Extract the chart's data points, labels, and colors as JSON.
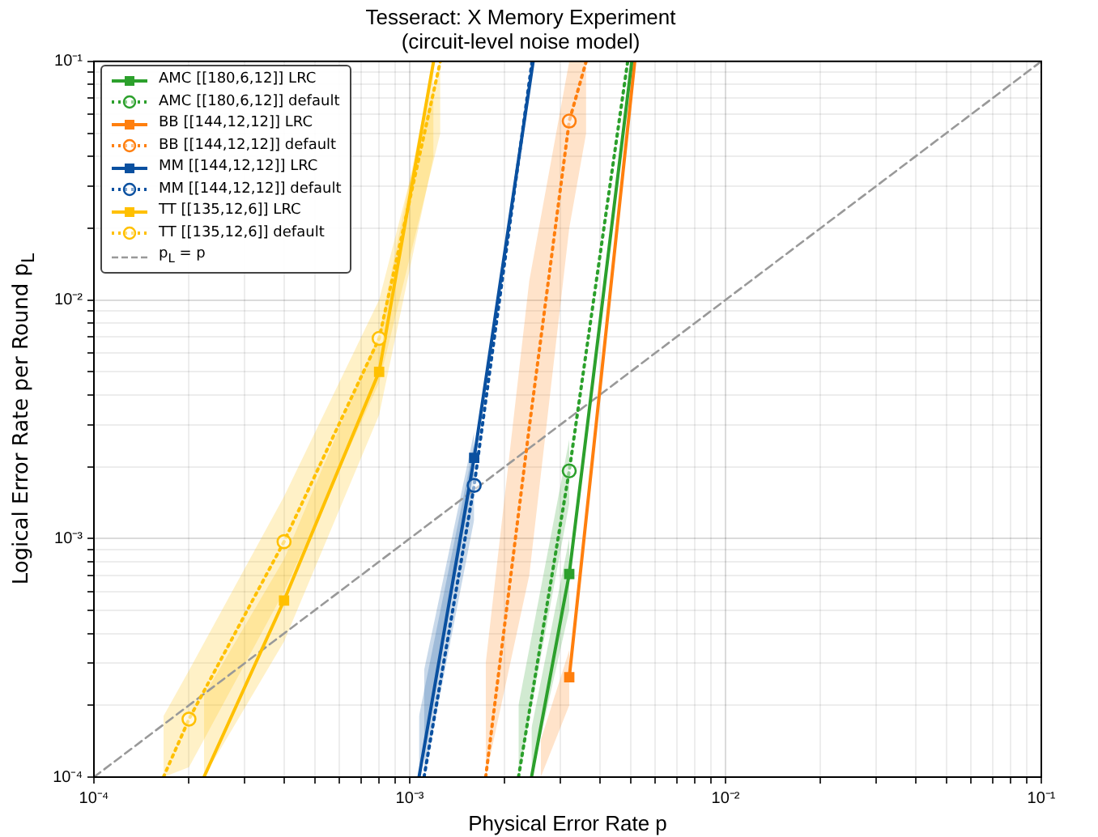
{
  "chart_data": {
    "type": "line",
    "title": "Tesseract: X Memory Experiment\n(circuit-level noise model)",
    "xlabel": "Physical Error Rate p",
    "ylabel": "Logical Error Rate per Round p$_{L}$",
    "log": "xy",
    "grid": true,
    "legend": "top left",
    "xlim": [
      0.0001,
      0.1
    ],
    "ylim": [
      0.0001,
      0.1
    ],
    "xticks": [
      {
        "value": 0.0001,
        "label": "10⁻⁴"
      },
      {
        "value": 0.0002,
        "label": null
      },
      {
        "value": 0.0003,
        "label": null
      },
      {
        "value": 0.0004,
        "label": null
      },
      {
        "value": 0.0005,
        "label": null
      },
      {
        "value": 0.0006,
        "label": null
      },
      {
        "value": 0.0007,
        "label": null
      },
      {
        "value": 0.0008,
        "label": null
      },
      {
        "value": 0.0009,
        "label": null
      },
      {
        "value": 0.001,
        "label": "10⁻³"
      },
      {
        "value": 0.002,
        "label": null
      },
      {
        "value": 0.003,
        "label": null
      },
      {
        "value": 0.004,
        "label": null
      },
      {
        "value": 0.005,
        "label": null
      },
      {
        "value": 0.006,
        "label": null
      },
      {
        "value": 0.007,
        "label": null
      },
      {
        "value": 0.008,
        "label": null
      },
      {
        "value": 0.009,
        "label": null
      },
      {
        "value": 0.01,
        "label": "10⁻²"
      },
      {
        "value": 0.02,
        "label": null
      },
      {
        "value": 0.03,
        "label": null
      },
      {
        "value": 0.04,
        "label": null
      },
      {
        "value": 0.05,
        "label": null
      },
      {
        "value": 0.06,
        "label": null
      },
      {
        "value": 0.07,
        "label": null
      },
      {
        "value": 0.08,
        "label": null
      },
      {
        "value": 0.09,
        "label": null
      },
      {
        "value": 0.1,
        "label": "10⁻¹"
      }
    ],
    "yticks": [
      {
        "value": 0.0001,
        "label": "10⁻⁴"
      },
      {
        "value": 0.0002,
        "label": null
      },
      {
        "value": 0.0003,
        "label": null
      },
      {
        "value": 0.0004,
        "label": null
      },
      {
        "value": 0.0005,
        "label": null
      },
      {
        "value": 0.0006,
        "label": null
      },
      {
        "value": 0.0007,
        "label": null
      },
      {
        "value": 0.0008,
        "label": null
      },
      {
        "value": 0.0009,
        "label": null
      },
      {
        "value": 0.001,
        "label": "10⁻³"
      },
      {
        "value": 0.002,
        "label": null
      },
      {
        "value": 0.003,
        "label": null
      },
      {
        "value": 0.004,
        "label": null
      },
      {
        "value": 0.005,
        "label": null
      },
      {
        "value": 0.006,
        "label": null
      },
      {
        "value": 0.007,
        "label": null
      },
      {
        "value": 0.008,
        "label": null
      },
      {
        "value": 0.009,
        "label": null
      },
      {
        "value": 0.01,
        "label": "10⁻²"
      },
      {
        "value": 0.02,
        "label": null
      },
      {
        "value": 0.03,
        "label": null
      },
      {
        "value": 0.04,
        "label": null
      },
      {
        "value": 0.05,
        "label": null
      },
      {
        "value": 0.06,
        "label": null
      },
      {
        "value": 0.07,
        "label": null
      },
      {
        "value": 0.08,
        "label": null
      },
      {
        "value": 0.09,
        "label": null
      },
      {
        "value": 0.1,
        "label": "10⁻¹"
      }
    ],
    "series": [
      {
        "type": "line",
        "color": "#2ca02c",
        "line_style": "solid",
        "marker": "none",
        "x": [
          0.00243,
          0.0032,
          0.00505
        ],
        "values": [
          0.0001,
          0.00071,
          0.1
        ],
        "lower": [
          0.0001,
          0.0005,
          null
        ],
        "upper": [
          0.00016,
          0.001,
          null
        ]
      },
      {
        "type": "line",
        "color": "#2ca02c",
        "line_style": "dotted",
        "marker": "none",
        "x": [
          0.00221,
          0.0032,
          0.0049
        ],
        "values": [
          0.0001,
          0.00192,
          0.1
        ],
        "lower": [
          0.0001,
          0.0014,
          null
        ],
        "upper": [
          0.0002,
          0.0026,
          null
        ]
      },
      {
        "type": "line",
        "color": "#ff7f0e",
        "line_style": "solid",
        "marker": "none",
        "x": [
          0.0026,
          0.0032,
          0.00516
        ],
        "values": [
          null,
          0.000262,
          0.1
        ],
        "lower": [
          0.0001,
          0.0002,
          null
        ],
        "upper": [
          0.000143,
          0.00034,
          null
        ]
      },
      {
        "type": "line",
        "color": "#ff7f0e",
        "line_style": "dotted",
        "marker": "none",
        "x": [
          0.00174,
          0.00239,
          0.0032,
          0.00362
        ],
        "values": [
          0.0001,
          0.00292,
          0.0562,
          0.1
        ],
        "lower": [
          0.0001,
          0.0007,
          0.02,
          0.05
        ],
        "upper": [
          0.0003,
          0.012,
          0.1,
          0.1
        ]
      },
      {
        "type": "line",
        "color": "#0a50a0",
        "line_style": "solid",
        "marker": "none",
        "x": [
          0.00107,
          0.0016,
          0.00246
        ],
        "values": [
          0.0001,
          0.00218,
          0.1
        ],
        "lower": [
          0.0001,
          0.0019,
          null
        ],
        "upper": [
          0.00018,
          0.0025,
          null
        ]
      },
      {
        "color": "#0a50a0",
        "line_style": "dotted",
        "marker": "none",
        "x": [
          0.00111,
          0.0016,
          0.00244
        ],
        "values": [
          0.0001,
          0.00167,
          0.1
        ],
        "lower": [
          0.0001,
          0.0012,
          null
        ],
        "upper": [
          0.00028,
          0.0028,
          null
        ]
      },
      {
        "type": "line",
        "color": "#ffc000",
        "line_style": "solid",
        "marker": "none",
        "x": [
          0.000223,
          0.0004,
          0.0008,
          0.00119
        ],
        "values": [
          0.0001,
          0.00055,
          0.005,
          0.1
        ],
        "lower": [
          0.0001,
          0.00037,
          0.0033,
          0.04
        ],
        "upper": [
          0.00022,
          0.00082,
          0.0072,
          0.1
        ]
      },
      {
        "type": "line",
        "color": "#ffc000",
        "line_style": "dotted",
        "marker": "none",
        "x": [
          0.000166,
          0.0002,
          0.0004,
          0.0008,
          0.00125
        ],
        "values": [
          0.0001,
          0.000175,
          0.00097,
          0.0069,
          0.1
        ],
        "lower": [
          0.0001,
          0.00011,
          0.0006,
          0.0045,
          0.05
        ],
        "upper": [
          0.00018,
          0.00028,
          0.0015,
          0.01,
          0.1
        ]
      },
      {
        "type": "scatter",
        "name": "AMC [[180,6,12]] LRC",
        "color": "#2ca02c",
        "line_style": "solid",
        "marker": "square",
        "x": [
          0.0032
        ],
        "values": [
          0.00071
        ]
      },
      {
        "type": "scatter",
        "name": "AMC [[180,6,12]] default",
        "color": "#2ca02c",
        "line_style": "dotted",
        "marker": "circle",
        "x": [
          0.0032
        ],
        "values": [
          0.00192
        ]
      },
      {
        "type": "scatter",
        "name": "BB [[144,12,12]] LRC",
        "color": "#ff7f0e",
        "line_style": "solid",
        "marker": "square",
        "x": [
          0.0032
        ],
        "values": [
          0.000262
        ]
      },
      {
        "type": "scatter",
        "name": "BB [[144,12,12]] default",
        "color": "#ff7f0e",
        "line_style": "dotted",
        "marker": "circle",
        "x": [
          0.0032
        ],
        "values": [
          0.0562
        ]
      },
      {
        "type": "scatter",
        "name": "MM [[144,12,12]] LRC",
        "color": "#0a50a0",
        "line_style": "solid",
        "marker": "square",
        "x": [
          0.0016
        ],
        "values": [
          0.00218
        ]
      },
      {
        "type": "scatter",
        "name": "MM [[144,12,12]] default",
        "color": "#0a50a0",
        "line_style": "dotted",
        "marker": "circle",
        "x": [
          0.0016
        ],
        "values": [
          0.00167
        ]
      },
      {
        "type": "scatter",
        "name": "TT [[135,12,6]] LRC",
        "color": "#ffc000",
        "line_style": "solid",
        "marker": "square",
        "x": [
          0.0004,
          0.0008
        ],
        "values": [
          0.00055,
          0.005
        ]
      },
      {
        "type": "scatter",
        "name": "TT [[135,12,6]] default",
        "color": "#ffc000",
        "line_style": "dotted",
        "marker": "circle",
        "x": [
          0.0002,
          0.0004,
          0.0008
        ],
        "values": [
          0.000175,
          0.00097,
          0.0069
        ]
      },
      {
        "type": "line",
        "name": "p$_{L}$ = p",
        "color": "#999999",
        "line_style": "dashed",
        "marker": "none",
        "x": [
          0.0001,
          0.1
        ],
        "values": [
          0.0001,
          0.1
        ]
      }
    ]
  }
}
